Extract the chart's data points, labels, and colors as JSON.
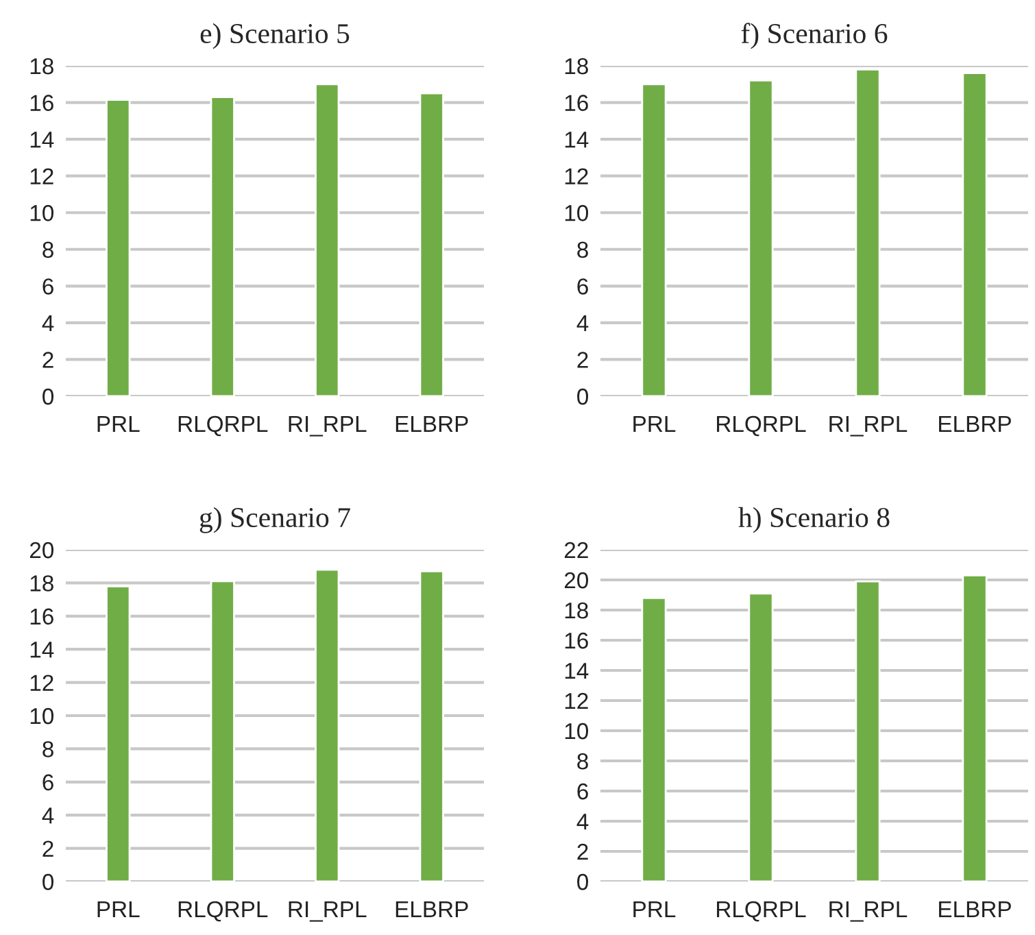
{
  "chart_data": [
    {
      "type": "bar",
      "title": "e) Scenario 5",
      "categories": [
        "PRL",
        "RLQRPL",
        "RI_RPL",
        "ELBRP"
      ],
      "values": [
        16.15,
        16.3,
        17.0,
        16.5
      ],
      "color": "#70ad47",
      "ylim": [
        0,
        18
      ],
      "yticks": [
        0,
        2,
        4,
        6,
        8,
        10,
        12,
        14,
        16,
        18
      ],
      "grid": "y",
      "legend": false
    },
    {
      "type": "bar",
      "title": "f) Scenario 6",
      "categories": [
        "PRL",
        "RLQRPL",
        "RI_RPL",
        "ELBRP"
      ],
      "values": [
        17.0,
        17.2,
        17.8,
        17.6
      ],
      "color": "#70ad47",
      "ylim": [
        0,
        18
      ],
      "yticks": [
        0,
        2,
        4,
        6,
        8,
        10,
        12,
        14,
        16,
        18
      ],
      "grid": "y",
      "legend": false
    },
    {
      "type": "bar",
      "title": "g) Scenario 7",
      "categories": [
        "PRL",
        "RLQRPL",
        "RI_RPL",
        "ELBRP"
      ],
      "values": [
        17.8,
        18.1,
        18.8,
        18.7
      ],
      "color": "#70ad47",
      "ylim": [
        0,
        20
      ],
      "yticks": [
        0,
        2,
        4,
        6,
        8,
        10,
        12,
        14,
        16,
        18,
        20
      ],
      "grid": "y",
      "legend": false
    },
    {
      "type": "bar",
      "title": "h) Scenario 8",
      "categories": [
        "PRL",
        "RLQRPL",
        "RI_RPL",
        "ELBRP"
      ],
      "values": [
        18.8,
        19.1,
        19.9,
        20.3
      ],
      "color": "#70ad47",
      "ylim": [
        0,
        22
      ],
      "yticks": [
        0,
        2,
        4,
        6,
        8,
        10,
        12,
        14,
        16,
        18,
        20,
        22
      ],
      "grid": "y",
      "legend": false
    }
  ]
}
